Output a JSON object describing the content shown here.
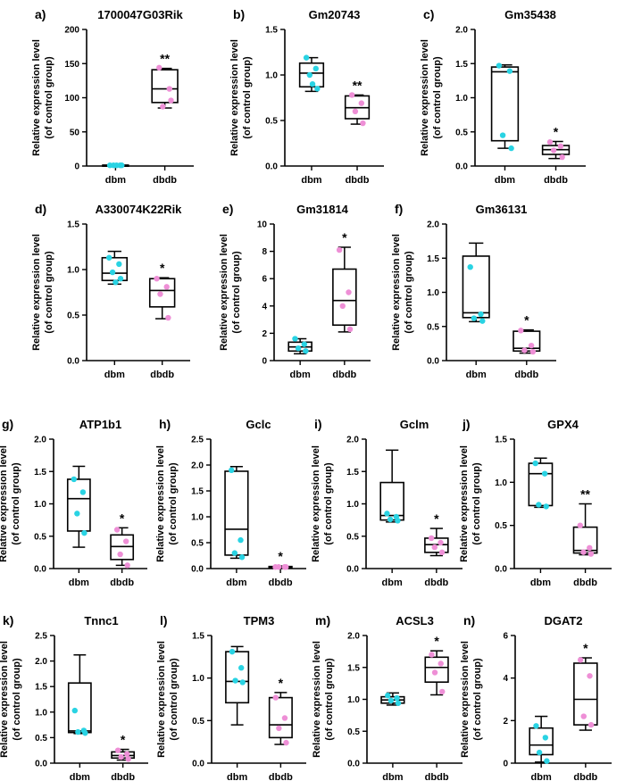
{
  "figure": {
    "marker_colors": {
      "dbm": "#29d3e3",
      "dbdb": "#ee8fd6"
    },
    "line_color": "#000000"
  },
  "chart_data": [
    {
      "id": "a",
      "letter": "a)",
      "type": "box",
      "title": "1700047G03Rik",
      "ylabel": [
        "Relative expression level",
        "(of control group)"
      ],
      "ylim": [
        0,
        200
      ],
      "yticks": [
        0,
        50,
        100,
        150,
        200
      ],
      "categories": [
        "dbm",
        "dbdb"
      ],
      "boxes": [
        {
          "group": "dbm",
          "min": 0.5,
          "q1": 0.7,
          "median": 1,
          "q3": 1.3,
          "max": 1.5,
          "points": [
            1,
            1,
            1,
            1,
            1
          ]
        },
        {
          "group": "dbdb",
          "min": 85,
          "q1": 93,
          "median": 113,
          "q3": 141,
          "max": 143,
          "points": [
            144,
            113,
            87,
            96
          ]
        }
      ],
      "significance": "**"
    },
    {
      "id": "b",
      "letter": "b)",
      "type": "box",
      "title": "Gm20743",
      "ylabel": [
        "Relative expression level",
        "(of control group)"
      ],
      "ylim": [
        0,
        1.5
      ],
      "yticks": [
        "0.0",
        "0.5",
        "1.0",
        "1.5"
      ],
      "categories": [
        "dbm",
        "dbdb"
      ],
      "boxes": [
        {
          "group": "dbm",
          "min": 0.82,
          "q1": 0.87,
          "median": 1.02,
          "q3": 1.13,
          "max": 1.19,
          "points": [
            1.19,
            1.07,
            1.0,
            0.85,
            0.9
          ]
        },
        {
          "group": "dbdb",
          "min": 0.46,
          "q1": 0.52,
          "median": 0.64,
          "q3": 0.77,
          "max": 0.78,
          "points": [
            0.78,
            0.69,
            0.6,
            0.47
          ]
        }
      ],
      "significance": "**"
    },
    {
      "id": "c",
      "letter": "c)",
      "type": "box",
      "title": "Gm35438",
      "ylabel": [
        "Relative expression level",
        "(of control group)"
      ],
      "ylim": [
        0,
        2.0
      ],
      "yticks": [
        "0.0",
        "0.5",
        "1.0",
        "1.5",
        "2.0"
      ],
      "categories": [
        "dbm",
        "dbdb"
      ],
      "boxes": [
        {
          "group": "dbm",
          "min": 0.26,
          "q1": 0.37,
          "median": 1.38,
          "q3": 1.45,
          "max": 1.48,
          "points": [
            1.47,
            1.39,
            0.45,
            0.26
          ]
        },
        {
          "group": "dbdb",
          "min": 0.11,
          "q1": 0.17,
          "median": 0.24,
          "q3": 0.3,
          "max": 0.36,
          "points": [
            0.35,
            0.29,
            0.23,
            0.13
          ]
        }
      ],
      "significance": "*"
    },
    {
      "id": "d",
      "letter": "d)",
      "type": "box",
      "title": "A330074K22Rik",
      "ylabel": [
        "Relative expression level",
        "(of control group)"
      ],
      "ylim": [
        0,
        1.5
      ],
      "yticks": [
        "0.0",
        "0.5",
        "1.0",
        "1.5"
      ],
      "categories": [
        "dbm",
        "dbdb"
      ],
      "boxes": [
        {
          "group": "dbm",
          "min": 0.84,
          "q1": 0.88,
          "median": 0.96,
          "q3": 1.13,
          "max": 1.2,
          "points": [
            1.13,
            1.06,
            0.97,
            0.9,
            0.86
          ]
        },
        {
          "group": "dbdb",
          "min": 0.46,
          "q1": 0.59,
          "median": 0.77,
          "q3": 0.9,
          "max": 0.91,
          "points": [
            0.9,
            0.81,
            0.73,
            0.47
          ]
        }
      ],
      "significance": "*"
    },
    {
      "id": "e",
      "letter": "e)",
      "type": "box",
      "title": "Gm31814",
      "ylabel": [
        "Relative expression level",
        "(of control group)"
      ],
      "ylim": [
        0,
        10
      ],
      "yticks": [
        0,
        2,
        4,
        6,
        8,
        10
      ],
      "categories": [
        "dbm",
        "dbdb"
      ],
      "boxes": [
        {
          "group": "dbm",
          "min": 0.5,
          "q1": 0.7,
          "median": 1.0,
          "q3": 1.35,
          "max": 1.6,
          "points": [
            1.6,
            1.2,
            0.9,
            0.7
          ]
        },
        {
          "group": "dbdb",
          "min": 2.1,
          "q1": 2.6,
          "median": 4.4,
          "q3": 6.7,
          "max": 8.3,
          "points": [
            8.1,
            5.0,
            4.0,
            2.3
          ]
        }
      ],
      "significance": "*"
    },
    {
      "id": "f",
      "letter": "f)",
      "type": "box",
      "title": "Gm36131",
      "ylabel": [
        "Relative expression level",
        "(of control group)"
      ],
      "ylim": [
        0,
        2.0
      ],
      "yticks": [
        "0.0",
        "0.5",
        "1.0",
        "1.5",
        "2.0"
      ],
      "categories": [
        "dbm",
        "dbdb"
      ],
      "boxes": [
        {
          "group": "dbm",
          "min": 0.57,
          "q1": 0.63,
          "median": 0.7,
          "q3": 1.53,
          "max": 1.72,
          "points": [
            1.37,
            0.68,
            0.62,
            0.58
          ]
        },
        {
          "group": "dbdb",
          "min": 0.11,
          "q1": 0.14,
          "median": 0.18,
          "q3": 0.43,
          "max": 0.45,
          "points": [
            0.44,
            0.22,
            0.15,
            0.13
          ]
        }
      ],
      "significance": "*"
    },
    {
      "id": "g",
      "letter": "g)",
      "type": "box",
      "title": "ATP1b1",
      "ylabel": [
        "Relative expression level",
        "(of control group)"
      ],
      "ylim": [
        0,
        2.0
      ],
      "yticks": [
        "0.0",
        "0.5",
        "1.0",
        "1.5",
        "2.0"
      ],
      "categories": [
        "dbm",
        "dbdb"
      ],
      "boxes": [
        {
          "group": "dbm",
          "min": 0.33,
          "q1": 0.58,
          "median": 1.08,
          "q3": 1.38,
          "max": 1.58,
          "points": [
            1.38,
            1.18,
            0.85,
            0.55
          ]
        },
        {
          "group": "dbdb",
          "min": 0.05,
          "q1": 0.14,
          "median": 0.34,
          "q3": 0.52,
          "max": 0.63,
          "points": [
            0.6,
            0.42,
            0.22,
            0.05
          ]
        }
      ],
      "significance": "*"
    },
    {
      "id": "h",
      "letter": "h)",
      "type": "box",
      "title": "Gclc",
      "ylabel": [
        "Relative expression level",
        "(of control group)"
      ],
      "ylim": [
        0,
        2.5
      ],
      "yticks": [
        "0.0",
        "0.5",
        "1.0",
        "1.5",
        "2.0",
        "2.5"
      ],
      "categories": [
        "dbm",
        "dbdb"
      ],
      "boxes": [
        {
          "group": "dbm",
          "min": 0.2,
          "q1": 0.26,
          "median": 0.76,
          "q3": 1.88,
          "max": 1.97,
          "points": [
            1.9,
            0.55,
            0.3,
            0.22
          ]
        },
        {
          "group": "dbdb",
          "min": 0.01,
          "q1": 0.02,
          "median": 0.03,
          "q3": 0.04,
          "max": 0.05,
          "points": [
            0.03,
            0.03,
            0.03,
            0.03
          ]
        }
      ],
      "significance": "*"
    },
    {
      "id": "i",
      "letter": "i)",
      "type": "box",
      "title": "Gclm",
      "ylabel": [
        "Relative expression level",
        "(of control group)"
      ],
      "ylim": [
        0,
        2.0
      ],
      "yticks": [
        "0.0",
        "0.5",
        "1.0",
        "1.5",
        "2.0"
      ],
      "categories": [
        "dbm",
        "dbdb"
      ],
      "boxes": [
        {
          "group": "dbm",
          "min": 0.72,
          "q1": 0.75,
          "median": 0.82,
          "q3": 1.33,
          "max": 1.83,
          "points": [
            0.85,
            0.8,
            0.76,
            0.74
          ]
        },
        {
          "group": "dbdb",
          "min": 0.2,
          "q1": 0.25,
          "median": 0.37,
          "q3": 0.47,
          "max": 0.62,
          "points": [
            0.47,
            0.4,
            0.33,
            0.25
          ]
        }
      ],
      "significance": "*"
    },
    {
      "id": "j",
      "letter": "j)",
      "type": "box",
      "title": "GPX4",
      "ylabel": [
        "Relative expression level",
        "(of control group)"
      ],
      "ylim": [
        0,
        1.5
      ],
      "yticks": [
        "0.0",
        "0.5",
        "1.0",
        "1.5"
      ],
      "categories": [
        "dbm",
        "dbdb"
      ],
      "boxes": [
        {
          "group": "dbm",
          "min": 0.71,
          "q1": 0.73,
          "median": 1.1,
          "q3": 1.22,
          "max": 1.28,
          "points": [
            1.22,
            1.1,
            0.74,
            0.72
          ]
        },
        {
          "group": "dbdb",
          "min": 0.16,
          "q1": 0.18,
          "median": 0.21,
          "q3": 0.48,
          "max": 0.75,
          "points": [
            0.5,
            0.24,
            0.19,
            0.17
          ]
        }
      ],
      "significance": "**"
    },
    {
      "id": "k",
      "letter": "k)",
      "type": "box",
      "title": "Tnnc1",
      "ylabel": [
        "Relative expression level",
        "(of control group)"
      ],
      "ylim": [
        0,
        2.5
      ],
      "yticks": [
        "0.0",
        "0.5",
        "1.0",
        "1.5",
        "2.0",
        "2.5"
      ],
      "categories": [
        "dbm",
        "dbdb"
      ],
      "boxes": [
        {
          "group": "dbm",
          "min": 0.58,
          "q1": 0.6,
          "median": 0.63,
          "q3": 1.57,
          "max": 2.12,
          "points": [
            1.03,
            0.64,
            0.61,
            0.59
          ]
        },
        {
          "group": "dbdb",
          "min": 0.06,
          "q1": 0.1,
          "median": 0.15,
          "q3": 0.22,
          "max": 0.27,
          "points": [
            0.25,
            0.18,
            0.12,
            0.08
          ]
        }
      ],
      "significance": "*"
    },
    {
      "id": "l",
      "letter": "l)",
      "type": "box",
      "title": "TPM3",
      "ylabel": [
        "Relative expression level",
        "(of control group)"
      ],
      "ylim": [
        0,
        1.5
      ],
      "yticks": [
        "0.0",
        "0.5",
        "1.0",
        "1.5"
      ],
      "categories": [
        "dbm",
        "dbdb"
      ],
      "boxes": [
        {
          "group": "dbm",
          "min": 0.45,
          "q1": 0.71,
          "median": 0.96,
          "q3": 1.31,
          "max": 1.37,
          "points": [
            1.31,
            1.12,
            0.97,
            0.95
          ]
        },
        {
          "group": "dbdb",
          "min": 0.22,
          "q1": 0.3,
          "median": 0.45,
          "q3": 0.77,
          "max": 0.83,
          "points": [
            0.77,
            0.53,
            0.41,
            0.24
          ]
        }
      ],
      "significance": "*"
    },
    {
      "id": "m",
      "letter": "m)",
      "type": "box",
      "title": "ACSL3",
      "ylabel": [
        "Relative expression level",
        "(of control group)"
      ],
      "ylim": [
        0,
        2.0
      ],
      "yticks": [
        "0.0",
        "0.5",
        "1.0",
        "1.5",
        "2.0"
      ],
      "categories": [
        "dbm",
        "dbdb"
      ],
      "boxes": [
        {
          "group": "dbm",
          "min": 0.91,
          "q1": 0.94,
          "median": 0.99,
          "q3": 1.04,
          "max": 1.1,
          "points": [
            1.06,
            1.02,
            0.98,
            0.94
          ]
        },
        {
          "group": "dbdb",
          "min": 1.07,
          "q1": 1.27,
          "median": 1.5,
          "q3": 1.66,
          "max": 1.76,
          "points": [
            1.7,
            1.56,
            1.42,
            1.12
          ]
        }
      ],
      "significance": "*"
    },
    {
      "id": "n",
      "letter": "n)",
      "type": "box",
      "title": "DGAT2",
      "ylabel": [
        "Relative expression level",
        "(of control group)"
      ],
      "ylim": [
        0,
        6
      ],
      "yticks": [
        0,
        2,
        4,
        6
      ],
      "categories": [
        "dbm",
        "dbdb"
      ],
      "boxes": [
        {
          "group": "dbm",
          "min": 0.05,
          "q1": 0.4,
          "median": 0.85,
          "q3": 1.65,
          "max": 2.2,
          "points": [
            1.75,
            1.2,
            0.5,
            0.1
          ]
        },
        {
          "group": "dbdb",
          "min": 1.55,
          "q1": 1.8,
          "median": 3.0,
          "q3": 4.7,
          "max": 4.95,
          "points": [
            4.85,
            4.1,
            2.2,
            1.8
          ]
        }
      ],
      "significance": "*"
    }
  ]
}
